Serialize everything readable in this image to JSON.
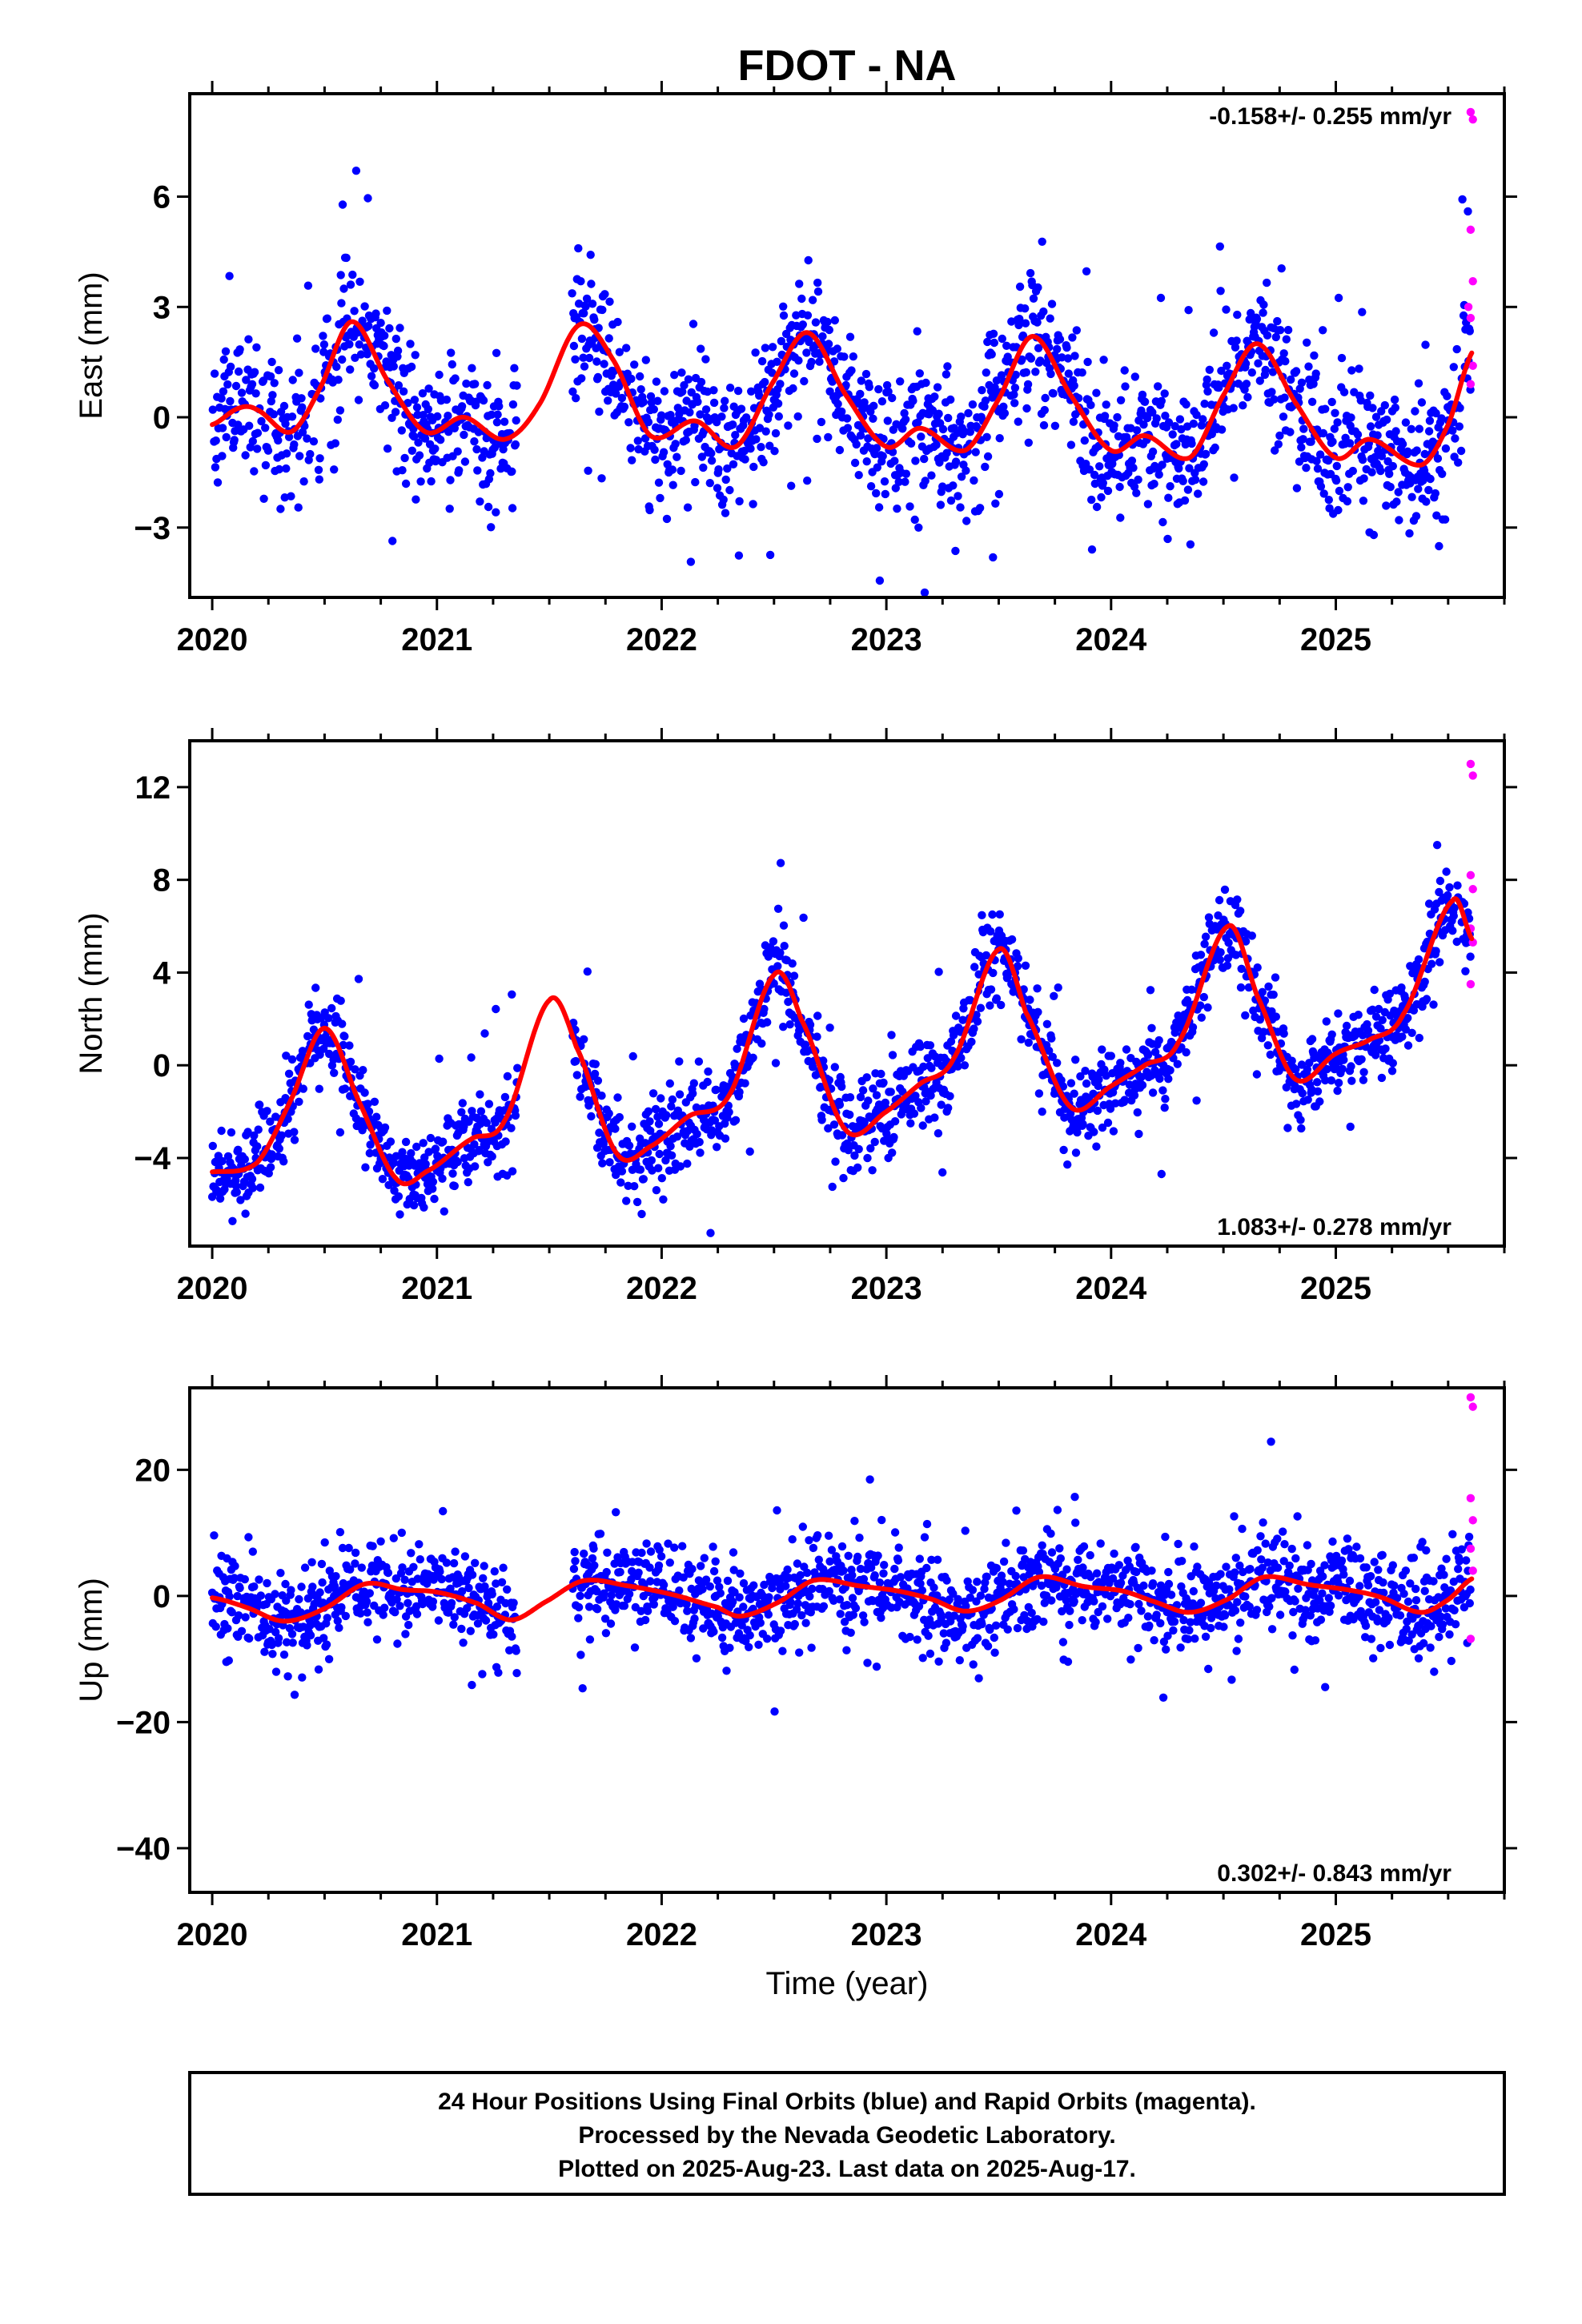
{
  "title": "FDOT - NA",
  "x_axis_title": "Time (year)",
  "colors": {
    "final": "#0000ff",
    "rapid": "#ff00ff",
    "fit": "#ff0000",
    "frame": "#000000"
  },
  "caption": [
    "24 Hour Positions Using Final Orbits (blue) and Rapid Orbits (magenta).",
    "Processed by the Nevada Geodetic Laboratory.",
    "Plotted on 2025-Aug-23. Last data on 2025-Aug-17."
  ],
  "chart_data": [
    {
      "type": "scatter",
      "ylabel": "East (mm)",
      "rate_label": "-0.158+/- 0.255 mm/yr",
      "rate_placement": "top-right",
      "xlim": [
        2019.9,
        2025.75
      ],
      "ylim": [
        -4.9,
        8.8
      ],
      "xticks": [
        2020,
        2021,
        2022,
        2023,
        2024,
        2025
      ],
      "yticks": [
        -3,
        0,
        3,
        6
      ],
      "gaps": [
        [
          2021.36,
          2021.6
        ]
      ],
      "series": [
        {
          "name": "Final Orbits",
          "color": "#0000ff",
          "trend": -0.000158,
          "annual_amp": 1.25,
          "annual_peak": 0.63,
          "semi_amp": 0.55,
          "semi_phase": 0.15,
          "noise": 0.9,
          "spike_prob": 0.04,
          "spike_size": 2.6
        },
        {
          "name": "Rapid Orbits",
          "color": "#ff00ff",
          "points": [
            [
              2025.6,
              8.3
            ],
            [
              2025.61,
              8.1
            ],
            [
              2025.6,
              5.1
            ],
            [
              2025.61,
              3.7
            ],
            [
              2025.59,
              3.0
            ],
            [
              2025.6,
              2.7
            ],
            [
              2025.61,
              1.4
            ],
            [
              2025.6,
              0.9
            ]
          ]
        }
      ],
      "fit_curve": {
        "color": "#ff0000",
        "knots": [
          [
            2020.0,
            -0.2
          ],
          [
            2020.12,
            0.25
          ],
          [
            2020.2,
            0.2
          ],
          [
            2020.35,
            -0.4
          ],
          [
            2020.48,
            0.8
          ],
          [
            2020.62,
            2.6
          ],
          [
            2020.78,
            1.0
          ],
          [
            2020.95,
            -0.4
          ],
          [
            2021.12,
            0.0
          ],
          [
            2021.3,
            -0.6
          ],
          [
            2021.45,
            0.3
          ],
          [
            2021.63,
            2.5
          ],
          [
            2021.78,
            1.6
          ],
          [
            2021.95,
            -0.5
          ],
          [
            2022.15,
            -0.1
          ],
          [
            2022.33,
            -0.8
          ],
          [
            2022.5,
            1.0
          ],
          [
            2022.65,
            2.3
          ],
          [
            2022.82,
            0.6
          ],
          [
            2023.0,
            -0.8
          ],
          [
            2023.15,
            -0.3
          ],
          [
            2023.35,
            -0.9
          ],
          [
            2023.5,
            0.5
          ],
          [
            2023.65,
            2.2
          ],
          [
            2023.82,
            0.6
          ],
          [
            2024.0,
            -0.9
          ],
          [
            2024.15,
            -0.5
          ],
          [
            2024.35,
            -1.1
          ],
          [
            2024.5,
            0.6
          ],
          [
            2024.65,
            2.0
          ],
          [
            2024.82,
            0.4
          ],
          [
            2025.0,
            -1.1
          ],
          [
            2025.15,
            -0.6
          ],
          [
            2025.38,
            -1.3
          ],
          [
            2025.5,
            -0.2
          ],
          [
            2025.61,
            1.8
          ]
        ]
      }
    },
    {
      "type": "scatter",
      "ylabel": "North (mm)",
      "rate_label": "1.083+/- 0.278 mm/yr",
      "rate_placement": "bottom-right",
      "xlim": [
        2019.9,
        2025.75
      ],
      "ylim": [
        -7.8,
        14.0
      ],
      "xticks": [
        2020,
        2021,
        2022,
        2023,
        2024,
        2025
      ],
      "yticks": [
        -4,
        0,
        4,
        8,
        12
      ],
      "gaps": [
        [
          2021.36,
          2021.6
        ]
      ],
      "series": [
        {
          "name": "Final Orbits",
          "color": "#0000ff",
          "trend": 0.001083,
          "annual_amp": 3.4,
          "annual_peak": 0.5,
          "semi_amp": 0.5,
          "semi_phase": 0.2,
          "noise": 0.9,
          "spike_prob": 0.03,
          "spike_size": 3.0
        },
        {
          "name": "Rapid Orbits",
          "color": "#ff00ff",
          "points": [
            [
              2025.6,
              13.0
            ],
            [
              2025.61,
              12.5
            ],
            [
              2025.6,
              8.2
            ],
            [
              2025.61,
              7.6
            ],
            [
              2025.6,
              5.9
            ],
            [
              2025.61,
              5.3
            ],
            [
              2025.6,
              3.5
            ]
          ]
        }
      ],
      "fit_curve": {
        "color": "#ff0000",
        "knots": [
          [
            2020.0,
            -4.6
          ],
          [
            2020.2,
            -4.2
          ],
          [
            2020.35,
            -1.5
          ],
          [
            2020.5,
            1.6
          ],
          [
            2020.65,
            -1.5
          ],
          [
            2020.82,
            -4.9
          ],
          [
            2020.95,
            -4.6
          ],
          [
            2021.15,
            -3.2
          ],
          [
            2021.3,
            -2.4
          ],
          [
            2021.5,
            2.8
          ],
          [
            2021.62,
            0.8
          ],
          [
            2021.8,
            -3.8
          ],
          [
            2021.95,
            -3.5
          ],
          [
            2022.12,
            -2.2
          ],
          [
            2022.3,
            -1.3
          ],
          [
            2022.5,
            3.9
          ],
          [
            2022.62,
            2.0
          ],
          [
            2022.82,
            -2.8
          ],
          [
            2023.0,
            -2.0
          ],
          [
            2023.15,
            -0.8
          ],
          [
            2023.3,
            0.3
          ],
          [
            2023.5,
            5.0
          ],
          [
            2023.62,
            2.3
          ],
          [
            2023.82,
            -1.8
          ],
          [
            2024.0,
            -0.9
          ],
          [
            2024.15,
            0.0
          ],
          [
            2024.3,
            1.0
          ],
          [
            2024.52,
            6.0
          ],
          [
            2024.65,
            3.0
          ],
          [
            2024.82,
            -0.6
          ],
          [
            2025.0,
            0.5
          ],
          [
            2025.15,
            1.1
          ],
          [
            2025.3,
            2.2
          ],
          [
            2025.52,
            7.1
          ],
          [
            2025.61,
            5.4
          ]
        ]
      }
    },
    {
      "type": "scatter",
      "ylabel": "Up (mm)",
      "rate_label": "0.302+/- 0.843 mm/yr",
      "rate_placement": "bottom-right",
      "xlim": [
        2019.9,
        2025.75
      ],
      "ylim": [
        -47.0,
        33.0
      ],
      "xticks": [
        2020,
        2021,
        2022,
        2023,
        2024,
        2025
      ],
      "yticks": [
        -40,
        -20,
        0,
        20
      ],
      "gaps": [
        [
          2021.36,
          2021.6
        ]
      ],
      "series": [
        {
          "name": "Final Orbits",
          "color": "#0000ff",
          "trend": 0.000302,
          "annual_amp": 2.8,
          "annual_peak": 0.75,
          "semi_amp": 0.6,
          "semi_phase": 0.1,
          "noise": 3.8,
          "spike_prob": 0.03,
          "spike_size": 9.0
        },
        {
          "name": "Rapid Orbits",
          "color": "#ff00ff",
          "points": [
            [
              2025.6,
              31.5
            ],
            [
              2025.61,
              30.0
            ],
            [
              2025.6,
              15.5
            ],
            [
              2025.61,
              12.0
            ],
            [
              2025.6,
              7.5
            ],
            [
              2025.61,
              4.0
            ],
            [
              2025.6,
              -6.8
            ]
          ]
        }
      ],
      "fit_curve": {
        "color": "#ff0000",
        "knots": [
          [
            2020.0,
            -0.3
          ],
          [
            2020.15,
            -1.8
          ],
          [
            2020.32,
            -4.0
          ],
          [
            2020.5,
            -2.0
          ],
          [
            2020.68,
            1.9
          ],
          [
            2020.85,
            1.0
          ],
          [
            2021.0,
            0.6
          ],
          [
            2021.18,
            -1.2
          ],
          [
            2021.33,
            -3.8
          ],
          [
            2021.48,
            -1.0
          ],
          [
            2021.65,
            2.4
          ],
          [
            2021.85,
            1.6
          ],
          [
            2022.05,
            0.2
          ],
          [
            2022.25,
            -1.8
          ],
          [
            2022.35,
            -3.2
          ],
          [
            2022.52,
            -1.0
          ],
          [
            2022.68,
            2.5
          ],
          [
            2022.88,
            1.6
          ],
          [
            2023.05,
            0.8
          ],
          [
            2023.2,
            -0.5
          ],
          [
            2023.35,
            -2.4
          ],
          [
            2023.5,
            -0.8
          ],
          [
            2023.68,
            3.0
          ],
          [
            2023.88,
            1.5
          ],
          [
            2024.05,
            0.8
          ],
          [
            2024.2,
            -1.0
          ],
          [
            2024.35,
            -2.6
          ],
          [
            2024.52,
            -0.5
          ],
          [
            2024.68,
            3.0
          ],
          [
            2024.88,
            1.8
          ],
          [
            2025.05,
            1.0
          ],
          [
            2025.2,
            -0.2
          ],
          [
            2025.38,
            -2.6
          ],
          [
            2025.5,
            -0.6
          ],
          [
            2025.61,
            2.8
          ]
        ]
      }
    }
  ]
}
